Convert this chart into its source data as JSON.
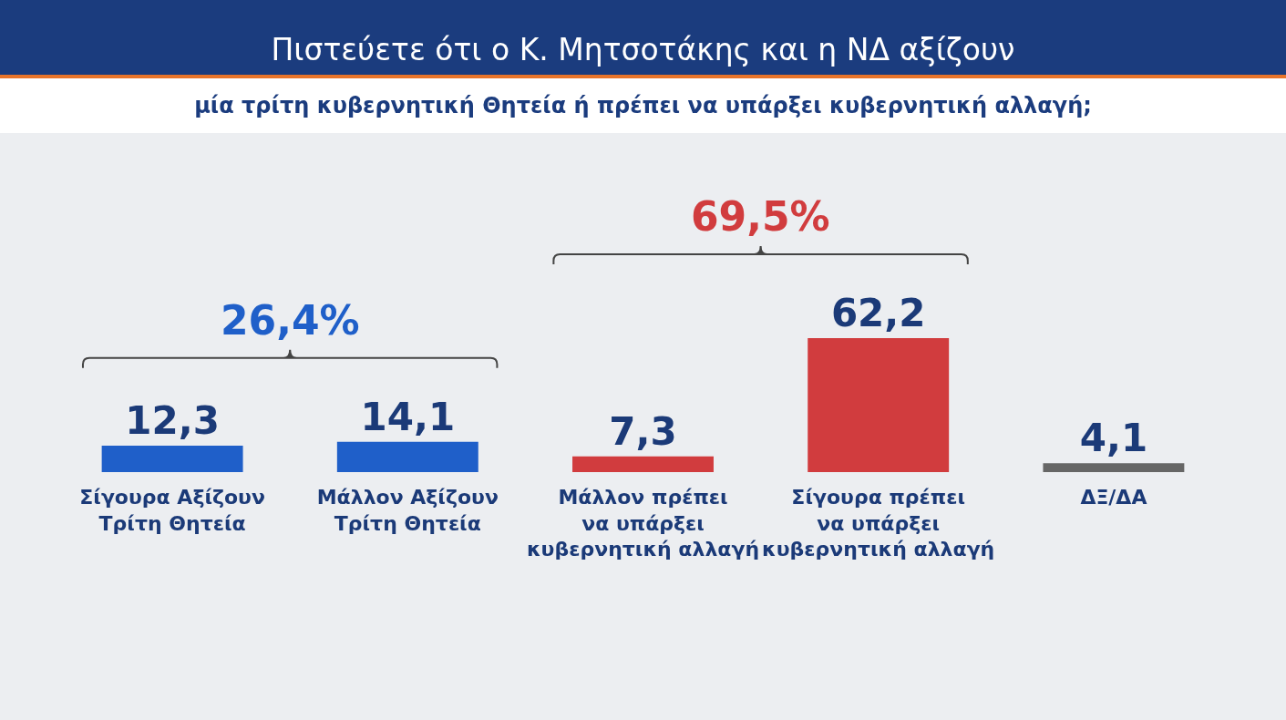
{
  "chart_data": {
    "type": "bar",
    "title": "Πιστεύετε ότι ο Κ. Μητσοτάκης και η ΝΔ αξίζουν",
    "subtitle": "μία τρίτη κυβερνητική Θητεία ή πρέπει να υπάρξει κυβερνητική αλλαγή;",
    "categories": [
      "Σίγουρα Αξίζουν Τρίτη Θητεία",
      "Μάλλον Αξίζουν Τρίτη Θητεία",
      "Μάλλον πρέπει να υπάρξει κυβερνητική αλλαγή",
      "Σίγουρα πρέπει να υπάρξει κυβερνητική αλλαγή",
      "ΔΞ/ΔΑ"
    ],
    "values": [
      12.3,
      14.1,
      7.3,
      62.2,
      4.1
    ],
    "value_labels": [
      "12,3",
      "14,1",
      "7,3",
      "62,2",
      "4,1"
    ],
    "colors": [
      "#1f5fc9",
      "#1f5fc9",
      "#d13c3e",
      "#d13c3e",
      "#666666"
    ],
    "annotations": [
      "26,4%",
      "69,5%"
    ],
    "tick_labels": "x"
  }
}
